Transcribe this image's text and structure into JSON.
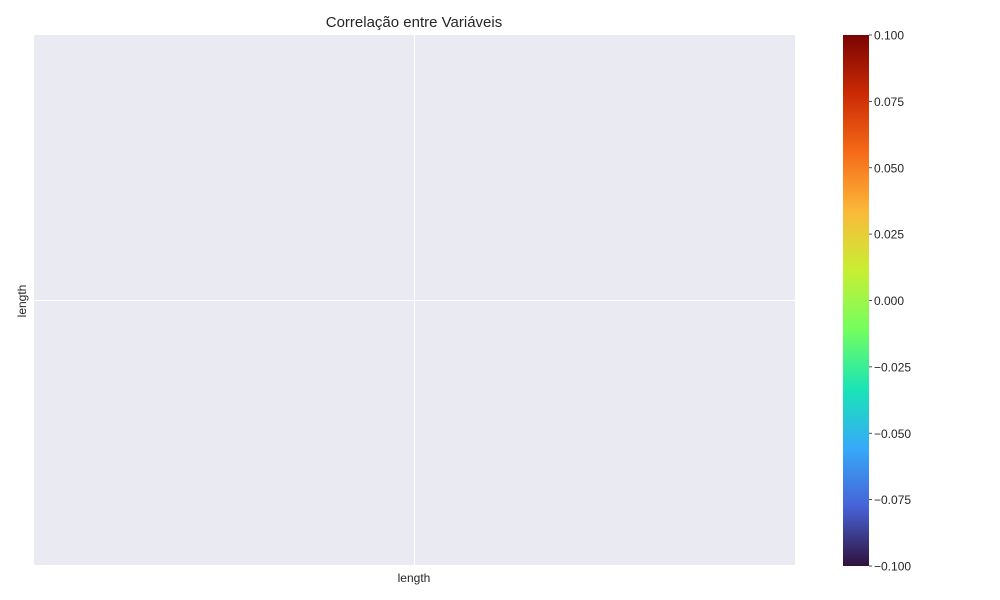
{
  "chart_data": {
    "type": "heatmap",
    "title": "Correlação entre Variáveis",
    "x_categories": [
      "length"
    ],
    "y_categories": [
      "length"
    ],
    "values": [
      [
        null
      ]
    ],
    "xlabel": "",
    "ylabel": "",
    "grid": true,
    "background_color": "#EAEAF2",
    "grid_color": "#FFFFFF",
    "colorbar": {
      "colormap": "turbo",
      "range": [
        -0.1,
        0.1
      ],
      "ticks": [
        0.1,
        0.075,
        0.05,
        0.025,
        0.0,
        -0.025,
        -0.05,
        -0.075,
        -0.1
      ],
      "tick_labels": [
        "0.100",
        "0.075",
        "0.050",
        "0.025",
        "0.000",
        "−0.025",
        "−0.050",
        "−0.075",
        "−0.100"
      ],
      "colors": [
        "#30123B",
        "#4662D7",
        "#36AAF9",
        "#1AE4B6",
        "#72FE5E",
        "#C7EF34",
        "#FABA39",
        "#F66B19",
        "#CB2A04",
        "#7A0403"
      ]
    }
  }
}
